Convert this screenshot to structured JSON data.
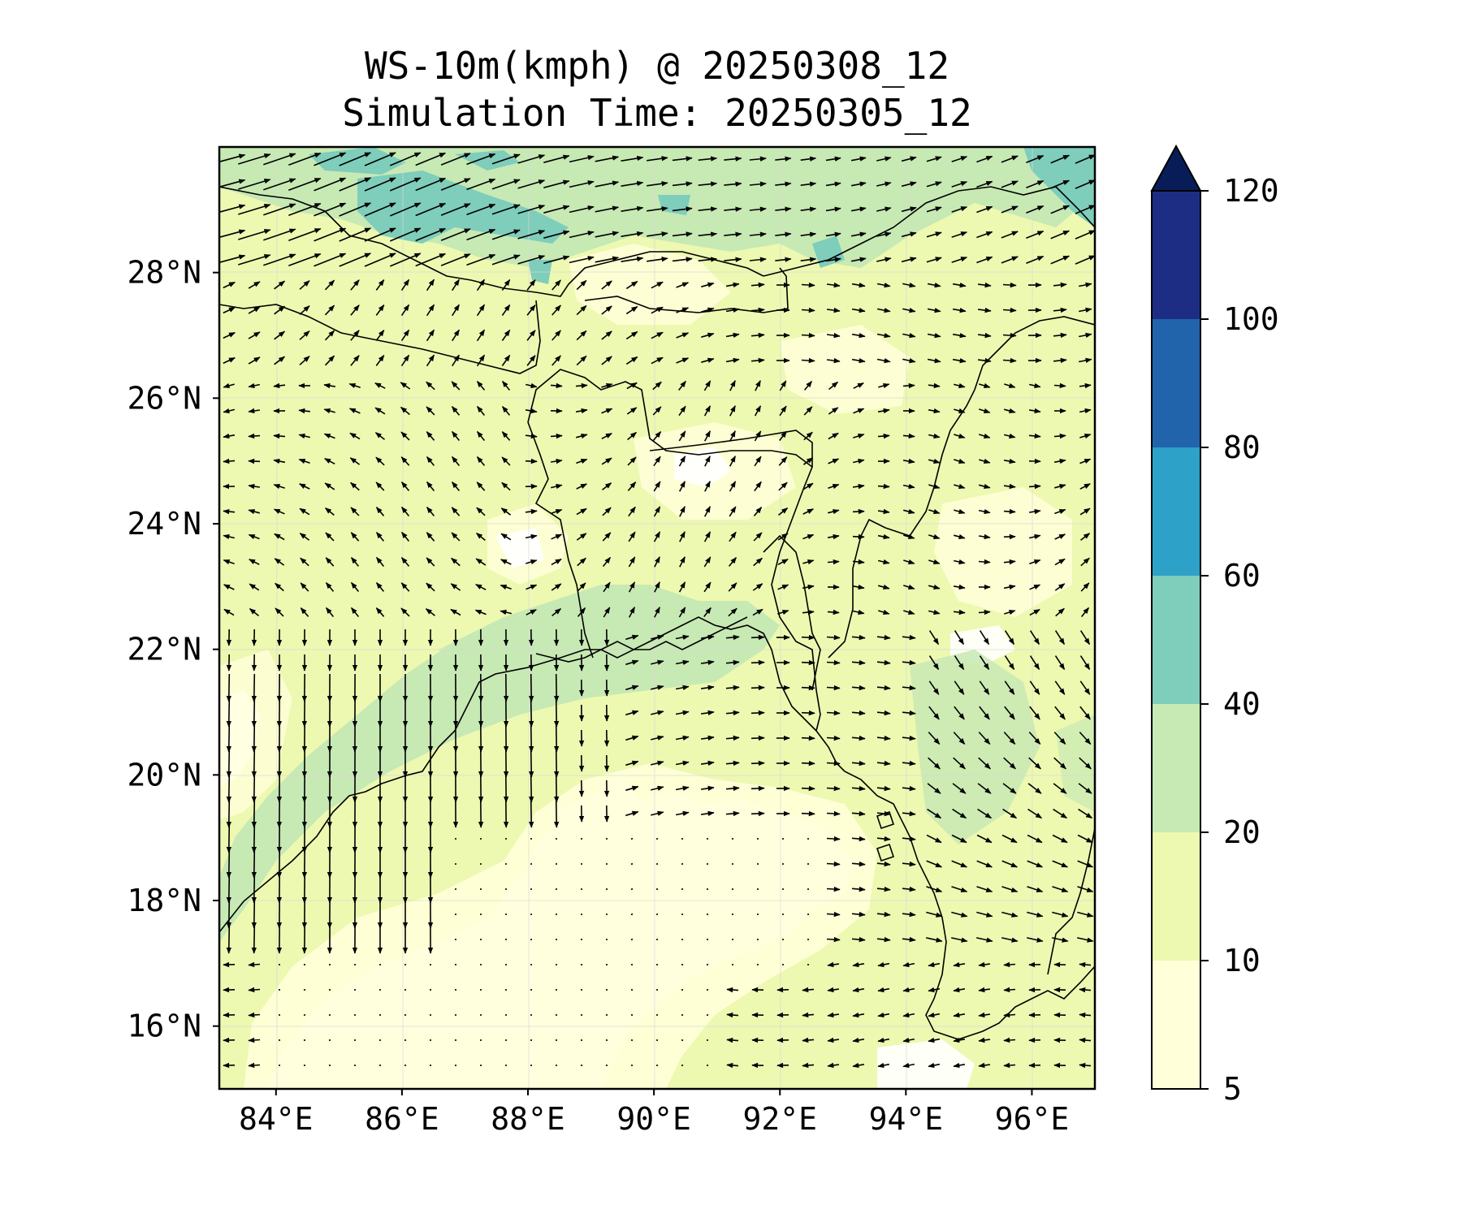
{
  "title_line1": "WS-10m(kmph) @ 20250308_12",
  "title_line2": "Simulation Time: 20250305_12",
  "map": {
    "lon_range": [
      83.1,
      97.0
    ],
    "lat_range": [
      15.0,
      30.0
    ],
    "lon_ticks": [
      {
        "value": 84,
        "label": "84°E"
      },
      {
        "value": 86,
        "label": "86°E"
      },
      {
        "value": 88,
        "label": "88°E"
      },
      {
        "value": 90,
        "label": "90°E"
      },
      {
        "value": 92,
        "label": "92°E"
      },
      {
        "value": 94,
        "label": "94°E"
      },
      {
        "value": 96,
        "label": "96°E"
      }
    ],
    "lat_ticks": [
      {
        "value": 16,
        "label": "16°N"
      },
      {
        "value": 18,
        "label": "18°N"
      },
      {
        "value": 20,
        "label": "20°N"
      },
      {
        "value": 22,
        "label": "22°N"
      },
      {
        "value": 24,
        "label": "24°N"
      },
      {
        "value": 26,
        "label": "26°N"
      },
      {
        "value": 28,
        "label": "28°N"
      }
    ],
    "gridlines": true,
    "vector_field": "10 m wind arrows"
  },
  "colorbar": {
    "levels": [
      {
        "from": 5,
        "to": 10,
        "color": "#ffffd9"
      },
      {
        "from": 10,
        "to": 20,
        "color": "#edf8b1"
      },
      {
        "from": 20,
        "to": 40,
        "color": "#c7e9b4"
      },
      {
        "from": 40,
        "to": 60,
        "color": "#7fcdbb"
      },
      {
        "from": 60,
        "to": 80,
        "color": "#2ea1c8"
      },
      {
        "from": 80,
        "to": 100,
        "color": "#2264ab"
      },
      {
        "from": 100,
        "to": 120,
        "color": "#1e2d84"
      }
    ],
    "extend_color": "#081d58",
    "tick_labels": [
      "5",
      "10",
      "20",
      "40",
      "60",
      "80",
      "100",
      "120"
    ],
    "extend": "max"
  }
}
